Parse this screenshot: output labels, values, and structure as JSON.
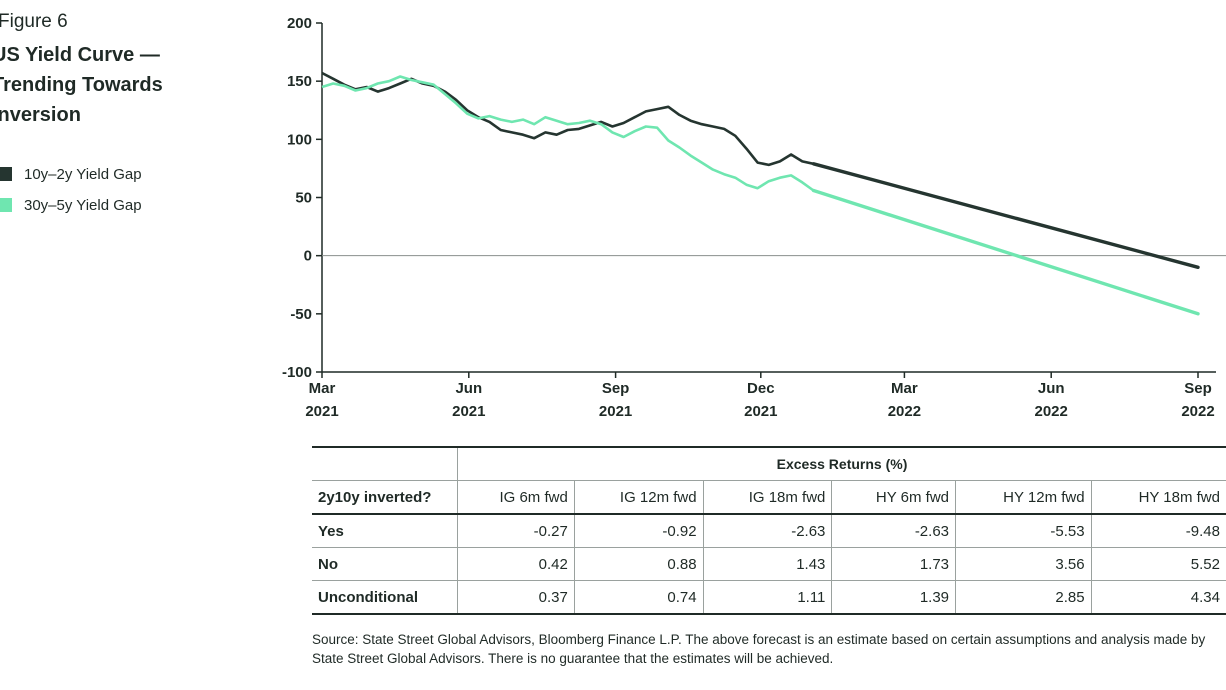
{
  "figure_label": "Figure 6",
  "title": "US Yield Curve — Trending Towards Inversion",
  "colors": {
    "series1": "#253530",
    "series2": "#6fe6b0",
    "axis": "#1f2a26",
    "zero": "#8a8f8d"
  },
  "chart_data": {
    "type": "line",
    "title": "US Yield Curve — Trending Towards Inversion",
    "xlabel": "",
    "ylabel": "",
    "ylim": [
      -100,
      200
    ],
    "yticks": [
      "200",
      "150",
      "100",
      "50",
      "0",
      "-50",
      "-100"
    ],
    "xticks": [
      {
        "month": "Mar",
        "year": "2021"
      },
      {
        "month": "Jun",
        "year": "2021"
      },
      {
        "month": "Sep",
        "year": "2021"
      },
      {
        "month": "Dec",
        "year": "2021"
      },
      {
        "month": "Mar",
        "year": "2022"
      },
      {
        "month": "Jun",
        "year": "2022"
      },
      {
        "month": "Sep",
        "year": "2022"
      }
    ],
    "grid": false,
    "legend": "left",
    "series": [
      {
        "name": "10y–2y Yield Gap",
        "historical": [
          [
            "2021-03-01",
            157
          ],
          [
            "2021-03-08",
            152
          ],
          [
            "2021-03-15",
            147
          ],
          [
            "2021-03-22",
            143
          ],
          [
            "2021-03-29",
            145
          ],
          [
            "2021-04-05",
            141
          ],
          [
            "2021-04-12",
            144
          ],
          [
            "2021-04-19",
            148
          ],
          [
            "2021-04-26",
            152
          ],
          [
            "2021-05-03",
            148
          ],
          [
            "2021-05-10",
            146
          ],
          [
            "2021-05-17",
            141
          ],
          [
            "2021-05-24",
            134
          ],
          [
            "2021-05-31",
            125
          ],
          [
            "2021-06-07",
            119
          ],
          [
            "2021-06-14",
            115
          ],
          [
            "2021-06-21",
            108
          ],
          [
            "2021-06-28",
            106
          ],
          [
            "2021-07-05",
            104
          ],
          [
            "2021-07-12",
            101
          ],
          [
            "2021-07-19",
            106
          ],
          [
            "2021-07-26",
            104
          ],
          [
            "2021-08-02",
            108
          ],
          [
            "2021-08-09",
            109
          ],
          [
            "2021-08-16",
            112
          ],
          [
            "2021-08-23",
            115
          ],
          [
            "2021-08-30",
            111
          ],
          [
            "2021-09-06",
            114
          ],
          [
            "2021-09-13",
            119
          ],
          [
            "2021-09-20",
            124
          ],
          [
            "2021-09-27",
            126
          ],
          [
            "2021-10-04",
            128
          ],
          [
            "2021-10-11",
            121
          ],
          [
            "2021-10-18",
            116
          ],
          [
            "2021-10-25",
            113
          ],
          [
            "2021-11-01",
            111
          ],
          [
            "2021-11-08",
            109
          ],
          [
            "2021-11-15",
            103
          ],
          [
            "2021-11-22",
            92
          ],
          [
            "2021-11-29",
            80
          ],
          [
            "2021-12-06",
            78
          ],
          [
            "2021-12-13",
            81
          ],
          [
            "2021-12-20",
            87
          ],
          [
            "2021-12-27",
            81
          ],
          [
            "2022-01-03",
            79
          ]
        ],
        "forecast": [
          [
            "2022-01-03",
            79
          ],
          [
            "2022-09-01",
            -10
          ]
        ]
      },
      {
        "name": "30y–5y Yield Gap",
        "historical": [
          [
            "2021-03-01",
            145
          ],
          [
            "2021-03-08",
            148
          ],
          [
            "2021-03-15",
            146
          ],
          [
            "2021-03-22",
            142
          ],
          [
            "2021-03-29",
            144
          ],
          [
            "2021-04-05",
            148
          ],
          [
            "2021-04-12",
            150
          ],
          [
            "2021-04-19",
            154
          ],
          [
            "2021-04-26",
            151
          ],
          [
            "2021-05-03",
            149
          ],
          [
            "2021-05-10",
            147
          ],
          [
            "2021-05-17",
            139
          ],
          [
            "2021-05-24",
            131
          ],
          [
            "2021-05-31",
            122
          ],
          [
            "2021-06-07",
            118
          ],
          [
            "2021-06-14",
            120
          ],
          [
            "2021-06-21",
            117
          ],
          [
            "2021-06-28",
            115
          ],
          [
            "2021-07-05",
            117
          ],
          [
            "2021-07-12",
            113
          ],
          [
            "2021-07-19",
            119
          ],
          [
            "2021-07-26",
            116
          ],
          [
            "2021-08-02",
            113
          ],
          [
            "2021-08-09",
            114
          ],
          [
            "2021-08-16",
            116
          ],
          [
            "2021-08-23",
            113
          ],
          [
            "2021-08-30",
            106
          ],
          [
            "2021-09-06",
            102
          ],
          [
            "2021-09-13",
            107
          ],
          [
            "2021-09-20",
            111
          ],
          [
            "2021-09-27",
            110
          ],
          [
            "2021-10-04",
            99
          ],
          [
            "2021-10-11",
            93
          ],
          [
            "2021-10-18",
            86
          ],
          [
            "2021-10-25",
            80
          ],
          [
            "2021-11-01",
            74
          ],
          [
            "2021-11-08",
            70
          ],
          [
            "2021-11-15",
            67
          ],
          [
            "2021-11-22",
            61
          ],
          [
            "2021-11-29",
            58
          ],
          [
            "2021-12-06",
            64
          ],
          [
            "2021-12-13",
            67
          ],
          [
            "2021-12-20",
            69
          ],
          [
            "2021-12-27",
            63
          ],
          [
            "2022-01-03",
            56
          ]
        ],
        "forecast": [
          [
            "2022-01-03",
            56
          ],
          [
            "2022-09-01",
            -50
          ]
        ]
      }
    ]
  },
  "table": {
    "group_header": "Excess Returns (%)",
    "row_header_label": "2y10y inverted?",
    "columns": [
      "IG 6m fwd",
      "IG 12m fwd",
      "IG 18m fwd",
      "HY 6m fwd",
      "HY 12m fwd",
      "HY 18m fwd"
    ],
    "rows": [
      {
        "label": "Yes",
        "values": [
          "-0.27",
          "-0.92",
          "-2.63",
          "-2.63",
          "-5.53",
          "-9.48"
        ]
      },
      {
        "label": "No",
        "values": [
          "0.42",
          "0.88",
          "1.43",
          "1.73",
          "3.56",
          "5.52"
        ]
      },
      {
        "label": "Unconditional",
        "values": [
          "0.37",
          "0.74",
          "1.11",
          "1.39",
          "2.85",
          "4.34"
        ]
      }
    ]
  },
  "source": "Source: State Street Global Advisors, Bloomberg Finance L.P. The above forecast is an estimate based on certain assumptions and analysis made by State Street Global Advisors. There is no guarantee that the estimates will be achieved."
}
